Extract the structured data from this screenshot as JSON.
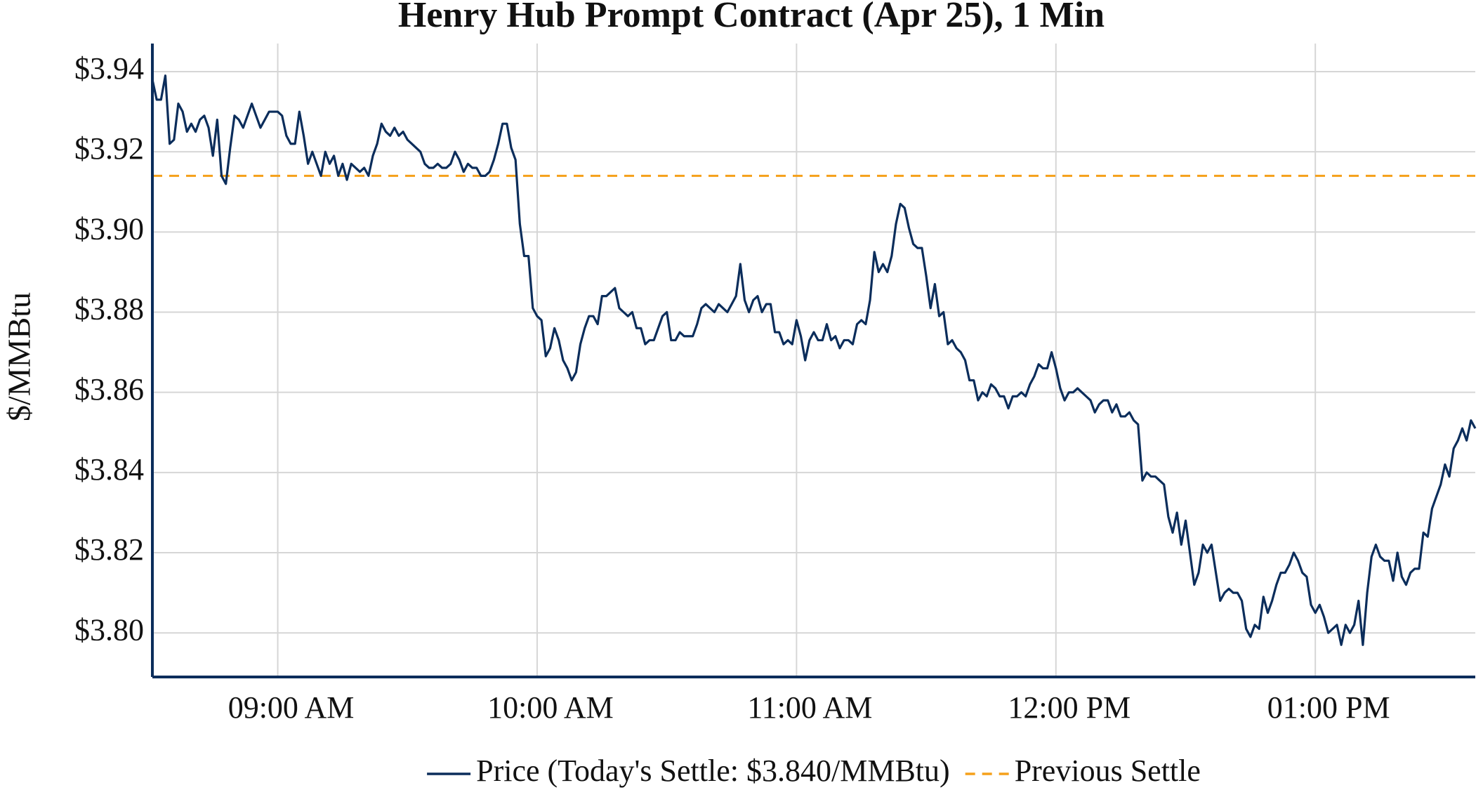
{
  "chart_data": {
    "type": "line",
    "title": "Henry Hub Prompt Contract (Apr 25), 1 Min",
    "y_label": "$/MMBtu",
    "x": [
      "08:31",
      "08:32",
      "08:33",
      "08:34",
      "08:35",
      "08:36",
      "08:37",
      "08:38",
      "08:39",
      "08:40",
      "08:41",
      "08:42",
      "08:43",
      "08:44",
      "08:45",
      "08:46",
      "08:47",
      "08:48",
      "08:49",
      "08:50",
      "08:51",
      "08:52",
      "08:53",
      "08:54",
      "08:55",
      "08:56",
      "08:57",
      "08:58",
      "08:59",
      "09:00",
      "09:01",
      "09:02",
      "09:03",
      "09:04",
      "09:05",
      "09:06",
      "09:07",
      "09:08",
      "09:09",
      "09:10",
      "09:11",
      "09:12",
      "09:13",
      "09:14",
      "09:15",
      "09:16",
      "09:17",
      "09:18",
      "09:19",
      "09:20",
      "09:21",
      "09:22",
      "09:23",
      "09:24",
      "09:25",
      "09:26",
      "09:27",
      "09:28",
      "09:29",
      "09:30",
      "09:31",
      "09:32",
      "09:33",
      "09:34",
      "09:35",
      "09:36",
      "09:37",
      "09:38",
      "09:39",
      "09:40",
      "09:41",
      "09:42",
      "09:43",
      "09:44",
      "09:45",
      "09:46",
      "09:47",
      "09:48",
      "09:49",
      "09:50",
      "09:51",
      "09:52",
      "09:53",
      "09:54",
      "09:55",
      "09:56",
      "09:57",
      "09:58",
      "09:59",
      "10:00",
      "10:01",
      "10:02",
      "10:03",
      "10:04",
      "10:05",
      "10:06",
      "10:07",
      "10:08",
      "10:09",
      "10:10",
      "10:11",
      "10:12",
      "10:13",
      "10:14",
      "10:15",
      "10:16",
      "10:17",
      "10:18",
      "10:19",
      "10:20",
      "10:21",
      "10:22",
      "10:23",
      "10:24",
      "10:25",
      "10:26",
      "10:27",
      "10:28",
      "10:29",
      "10:30",
      "10:31",
      "10:32",
      "10:33",
      "10:34",
      "10:35",
      "10:36",
      "10:37",
      "10:38",
      "10:39",
      "10:40",
      "10:41",
      "10:42",
      "10:43",
      "10:44",
      "10:45",
      "10:46",
      "10:47",
      "10:48",
      "10:49",
      "10:50",
      "10:51",
      "10:52",
      "10:53",
      "10:54",
      "10:55",
      "10:56",
      "10:57",
      "10:58",
      "10:59",
      "11:00",
      "11:01",
      "11:02",
      "11:03",
      "11:04",
      "11:05",
      "11:06",
      "11:07",
      "11:08",
      "11:09",
      "11:10",
      "11:11",
      "11:12",
      "11:13",
      "11:14",
      "11:15",
      "11:16",
      "11:17",
      "11:18",
      "11:19",
      "11:20",
      "11:21",
      "11:22",
      "11:23",
      "11:24",
      "11:25",
      "11:26",
      "11:27",
      "11:28",
      "11:29",
      "11:30",
      "11:31",
      "11:32",
      "11:33",
      "11:34",
      "11:35",
      "11:36",
      "11:37",
      "11:38",
      "11:39",
      "11:40",
      "11:41",
      "11:42",
      "11:43",
      "11:44",
      "11:45",
      "11:46",
      "11:47",
      "11:48",
      "11:49",
      "11:50",
      "11:51",
      "11:52",
      "11:53",
      "11:54",
      "11:55",
      "11:56",
      "11:57",
      "11:58",
      "11:59",
      "12:00",
      "12:01",
      "12:02",
      "12:03",
      "12:04",
      "12:05",
      "12:06",
      "12:07",
      "12:08",
      "12:09",
      "12:10",
      "12:11",
      "12:12",
      "12:13",
      "12:14",
      "12:15",
      "12:16",
      "12:17",
      "12:18",
      "12:19",
      "12:20",
      "12:21",
      "12:22",
      "12:23",
      "12:24",
      "12:25",
      "12:26",
      "12:27",
      "12:28",
      "12:29",
      "12:30",
      "12:31",
      "12:32",
      "12:33",
      "12:34",
      "12:35",
      "12:36",
      "12:37",
      "12:38",
      "12:39",
      "12:40",
      "12:41",
      "12:42",
      "12:43",
      "12:44",
      "12:45",
      "12:46",
      "12:47",
      "12:48",
      "12:49",
      "12:50",
      "12:51",
      "12:52",
      "12:53",
      "12:54",
      "12:55",
      "12:56",
      "12:57",
      "12:58",
      "12:59",
      "13:00",
      "13:01",
      "13:02",
      "13:03",
      "13:04",
      "13:05",
      "13:06",
      "13:07",
      "13:08",
      "13:09",
      "13:10",
      "13:11",
      "13:12",
      "13:13",
      "13:14",
      "13:15",
      "13:16",
      "13:17",
      "13:18",
      "13:19",
      "13:20",
      "13:21",
      "13:22",
      "13:23",
      "13:24",
      "13:25",
      "13:26",
      "13:27",
      "13:28",
      "13:29",
      "13:30",
      "13:31",
      "13:32",
      "13:33",
      "13:34",
      "13:35",
      "13:36",
      "13:37"
    ],
    "series": [
      {
        "name": "Price (Today's Settle: $3.840/MMBtu)",
        "color": "#0b2d5b",
        "values": [
          3.938,
          3.933,
          3.933,
          3.939,
          3.922,
          3.923,
          3.932,
          3.93,
          3.925,
          3.927,
          3.925,
          3.928,
          3.929,
          3.926,
          3.919,
          3.928,
          3.914,
          3.912,
          3.921,
          3.929,
          3.928,
          3.926,
          3.929,
          3.932,
          3.929,
          3.926,
          3.928,
          3.93,
          3.93,
          3.93,
          3.929,
          3.924,
          3.922,
          3.922,
          3.93,
          3.924,
          3.917,
          3.92,
          3.917,
          3.914,
          3.92,
          3.917,
          3.919,
          3.914,
          3.917,
          3.913,
          3.917,
          3.916,
          3.915,
          3.916,
          3.914,
          3.919,
          3.922,
          3.927,
          3.925,
          3.924,
          3.926,
          3.924,
          3.925,
          3.923,
          3.922,
          3.921,
          3.92,
          3.917,
          3.916,
          3.916,
          3.917,
          3.916,
          3.916,
          3.917,
          3.92,
          3.918,
          3.915,
          3.917,
          3.916,
          3.916,
          3.914,
          3.914,
          3.915,
          3.918,
          3.922,
          3.927,
          3.927,
          3.921,
          3.918,
          3.902,
          3.894,
          3.894,
          3.881,
          3.879,
          3.878,
          3.869,
          3.871,
          3.876,
          3.873,
          3.868,
          3.866,
          3.863,
          3.865,
          3.872,
          3.876,
          3.879,
          3.879,
          3.877,
          3.884,
          3.884,
          3.885,
          3.886,
          3.881,
          3.88,
          3.879,
          3.88,
          3.876,
          3.876,
          3.872,
          3.873,
          3.873,
          3.876,
          3.879,
          3.88,
          3.873,
          3.873,
          3.875,
          3.874,
          3.874,
          3.874,
          3.877,
          3.881,
          3.882,
          3.881,
          3.88,
          3.882,
          3.881,
          3.88,
          3.882,
          3.884,
          3.892,
          3.883,
          3.88,
          3.883,
          3.884,
          3.88,
          3.882,
          3.882,
          3.875,
          3.875,
          3.872,
          3.873,
          3.872,
          3.878,
          3.874,
          3.868,
          3.873,
          3.875,
          3.873,
          3.873,
          3.877,
          3.873,
          3.874,
          3.871,
          3.873,
          3.873,
          3.872,
          3.877,
          3.878,
          3.877,
          3.883,
          3.895,
          3.89,
          3.892,
          3.89,
          3.894,
          3.902,
          3.907,
          3.906,
          3.901,
          3.897,
          3.896,
          3.896,
          3.889,
          3.881,
          3.887,
          3.879,
          3.88,
          3.872,
          3.873,
          3.871,
          3.87,
          3.868,
          3.863,
          3.863,
          3.858,
          3.86,
          3.859,
          3.862,
          3.861,
          3.859,
          3.859,
          3.856,
          3.859,
          3.859,
          3.86,
          3.859,
          3.862,
          3.864,
          3.867,
          3.866,
          3.866,
          3.87,
          3.866,
          3.861,
          3.858,
          3.86,
          3.86,
          3.861,
          3.86,
          3.859,
          3.858,
          3.855,
          3.857,
          3.858,
          3.858,
          3.855,
          3.857,
          3.854,
          3.854,
          3.855,
          3.853,
          3.852,
          3.838,
          3.84,
          3.839,
          3.839,
          3.838,
          3.837,
          3.829,
          3.825,
          3.83,
          3.822,
          3.828,
          3.82,
          3.812,
          3.815,
          3.822,
          3.82,
          3.822,
          3.815,
          3.808,
          3.81,
          3.811,
          3.81,
          3.81,
          3.808,
          3.801,
          3.799,
          3.802,
          3.801,
          3.809,
          3.805,
          3.808,
          3.812,
          3.815,
          3.815,
          3.817,
          3.82,
          3.818,
          3.815,
          3.814,
          3.807,
          3.805,
          3.807,
          3.804,
          3.8,
          3.801,
          3.802,
          3.797,
          3.802,
          3.8,
          3.802,
          3.808,
          3.797,
          3.81,
          3.819,
          3.822,
          3.819,
          3.818,
          3.818,
          3.813,
          3.82,
          3.814,
          3.812,
          3.815,
          3.816,
          3.816,
          3.825,
          3.824,
          3.831,
          3.834,
          3.837,
          3.842,
          3.839,
          3.846,
          3.848,
          3.851,
          3.848,
          3.853,
          3.851
        ]
      }
    ],
    "reference_line": {
      "name": "Previous Settle",
      "value": 3.914,
      "color": "#f5a01a",
      "dashed": true
    },
    "xlim": [
      "08:31",
      "13:37"
    ],
    "xticks": [
      {
        "value": "09:00",
        "label": "09:00 AM"
      },
      {
        "value": "10:00",
        "label": "10:00 AM"
      },
      {
        "value": "11:00",
        "label": "11:00 AM"
      },
      {
        "value": "12:00",
        "label": "12:00 PM"
      },
      {
        "value": "13:00",
        "label": "01:00 PM"
      }
    ],
    "ylim": [
      3.789,
      3.947
    ],
    "yticks": [
      {
        "value": 3.8,
        "label": "$3.80"
      },
      {
        "value": 3.82,
        "label": "$3.82"
      },
      {
        "value": 3.84,
        "label": "$3.84"
      },
      {
        "value": 3.86,
        "label": "$3.86"
      },
      {
        "value": 3.88,
        "label": "$3.88"
      },
      {
        "value": 3.9,
        "label": "$3.90"
      },
      {
        "value": 3.92,
        "label": "$3.92"
      },
      {
        "value": 3.94,
        "label": "$3.94"
      }
    ],
    "grid": true,
    "legend": "bottom"
  }
}
